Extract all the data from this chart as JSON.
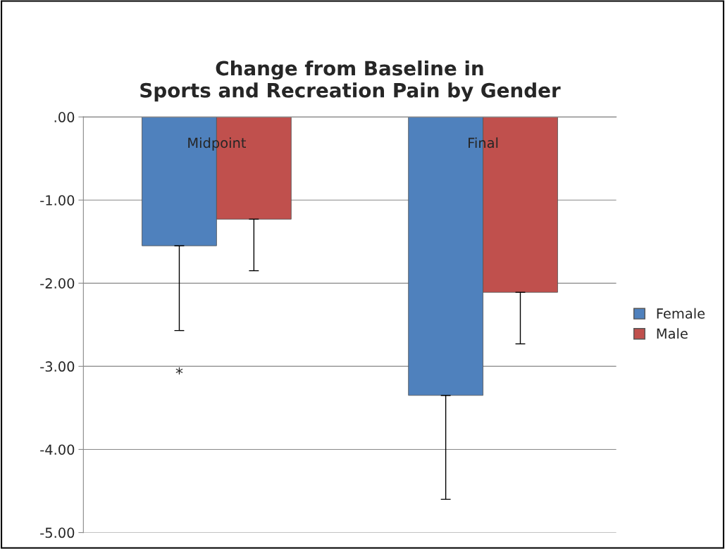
{
  "chart_data": {
    "type": "bar",
    "title": "Change from Baseline in\nSports and Recreation Pain by Gender",
    "categories": [
      "Midpoint",
      "Final"
    ],
    "series": [
      {
        "name": "Female",
        "color": "#4f81bd",
        "values": [
          -1.55,
          -3.35
        ],
        "errors": [
          [
            -2.57,
            -1.55
          ],
          [
            -4.6,
            -3.35
          ]
        ]
      },
      {
        "name": "Male",
        "color": "#c0504d",
        "values": [
          -1.23,
          -2.11
        ],
        "errors": [
          [
            -1.85,
            -1.23
          ],
          [
            -2.73,
            -2.11
          ]
        ]
      }
    ],
    "ylim": [
      -5,
      0
    ],
    "yticks": [
      {
        "value": 0,
        "label": ".00"
      },
      {
        "value": -1,
        "label": "-1.00"
      },
      {
        "value": -2,
        "label": "-2.00"
      },
      {
        "value": -3,
        "label": "-3.00"
      },
      {
        "value": -4,
        "label": "-4.00"
      },
      {
        "value": -5,
        "label": "-5.00"
      }
    ],
    "annotations": [
      "*"
    ],
    "grid": "y",
    "legend": "right"
  }
}
